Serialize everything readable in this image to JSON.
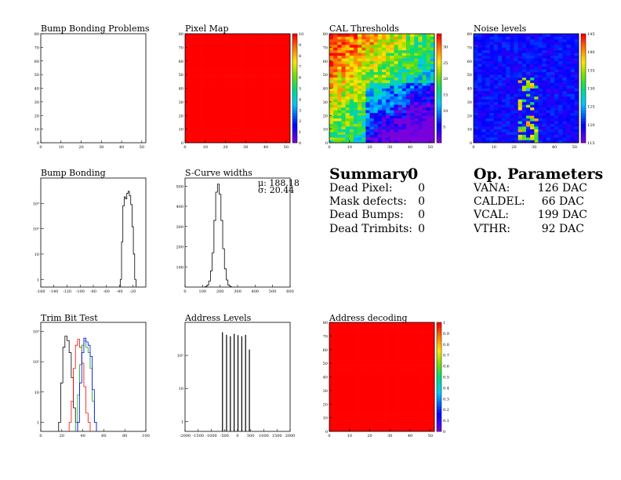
{
  "panels": {
    "bump_problems": {
      "title": "Bump Bonding Problems"
    },
    "pixel_map": {
      "title": "Pixel Map"
    },
    "cal_thresholds": {
      "title": "CAL Thresholds"
    },
    "noise_levels": {
      "title": "Noise levels"
    },
    "bump_bonding": {
      "title": "Bump Bonding"
    },
    "scurve": {
      "title": "S-Curve widths",
      "mu": "μ: 188.18",
      "sigma": "σ:  20.44"
    },
    "trim_bit": {
      "title": "Trim Bit Test"
    },
    "address_levels": {
      "title": "Address Levels"
    },
    "address_decoding": {
      "title": "Address decoding"
    }
  },
  "summary": {
    "heading": "Summary",
    "total": "0",
    "rows": [
      {
        "label": "Dead Pixel:",
        "value": "0"
      },
      {
        "label": "Mask defects:",
        "value": "0"
      },
      {
        "label": "Dead Bumps:",
        "value": "0"
      },
      {
        "label": "Dead Trimbits:",
        "value": "0"
      }
    ]
  },
  "op_parameters": {
    "heading": "Op. Parameters",
    "rows": [
      {
        "label": "VANA:",
        "value": "126 DAC"
      },
      {
        "label": "CALDEL:",
        "value": "66 DAC"
      },
      {
        "label": "VCAL:",
        "value": "199 DAC"
      },
      {
        "label": "VTHR:",
        "value": "92 DAC"
      }
    ]
  },
  "chart_data": [
    {
      "type": "heatmap",
      "id": "bump_problems",
      "title": "Bump Bonding Problems",
      "xlim": [
        0,
        52
      ],
      "ylim": [
        0,
        80
      ],
      "xticks": [
        "0",
        "10",
        "20",
        "30",
        "40",
        "50"
      ],
      "yticks": [
        "0",
        "10",
        "20",
        "30",
        "40",
        "50",
        "60",
        "70",
        "80"
      ],
      "values": "empty"
    },
    {
      "type": "heatmap",
      "id": "pixel_map",
      "title": "Pixel Map",
      "xlim": [
        0,
        52
      ],
      "ylim": [
        0,
        80
      ],
      "zlim": [
        0,
        10
      ],
      "xticks": [
        "0",
        "10",
        "20",
        "30",
        "40",
        "50"
      ],
      "yticks": [
        "0",
        "10",
        "20",
        "30",
        "40",
        "50",
        "60",
        "70",
        "80"
      ],
      "zticks": [
        "0",
        "1",
        "2",
        "3",
        "4",
        "5",
        "6",
        "7",
        "8",
        "9",
        "10"
      ],
      "uniform_value": 10
    },
    {
      "type": "heatmap",
      "id": "cal_thresholds",
      "title": "CAL Thresholds",
      "xlim": [
        0,
        52
      ],
      "ylim": [
        0,
        80
      ],
      "zlim": [
        0,
        34
      ],
      "xticks": [
        "0",
        "10",
        "20",
        "30",
        "40",
        "50"
      ],
      "yticks": [
        "0",
        "10",
        "20",
        "30",
        "40",
        "50",
        "60",
        "70",
        "80"
      ],
      "zticks": [
        "5",
        "10",
        "15",
        "20",
        "25",
        "30"
      ],
      "pattern": "high thresholds top-left (~28-34), low thresholds bottom-right (~3-8)"
    },
    {
      "type": "heatmap",
      "id": "noise_levels",
      "title": "Noise levels",
      "xlim": [
        0,
        52
      ],
      "ylim": [
        0,
        80
      ],
      "zlim": [
        115,
        145
      ],
      "xticks": [
        "0",
        "10",
        "20",
        "30",
        "40",
        "50"
      ],
      "yticks": [
        "0",
        "10",
        "20",
        "30",
        "40",
        "50",
        "60",
        "70",
        "80"
      ],
      "zticks": [
        "115",
        "120",
        "125",
        "130",
        "135",
        "140",
        "145"
      ],
      "pattern": "mostly ~118-122, elevated noise around columns 20-30 near bottom"
    },
    {
      "type": "line",
      "id": "bump_bonding",
      "title": "Bump Bonding",
      "log_y": true,
      "xlim": [
        -160,
        0
      ],
      "ylim": [
        0.5,
        10000
      ],
      "xticks": [
        "-160",
        "-140",
        "-120",
        "-100",
        "-80",
        "-60",
        "-40",
        "-20"
      ],
      "yticks": [
        "1",
        "10",
        "10²",
        "10³"
      ],
      "series": [
        {
          "x": [
            -38,
            -36,
            -34,
            -32,
            -30,
            -28,
            -26,
            -24,
            -22,
            -20,
            -18,
            -16
          ],
          "y": [
            1,
            30,
            800,
            1800,
            1500,
            2500,
            3000,
            2000,
            900,
            120,
            10,
            1
          ]
        }
      ]
    },
    {
      "type": "line",
      "id": "scurve",
      "title": "S-Curve widths",
      "xlim": [
        0,
        600
      ],
      "ylim": [
        0,
        540
      ],
      "xticks": [
        "0",
        "100",
        "200",
        "300",
        "400",
        "500",
        "600"
      ],
      "yticks": [
        "100",
        "200",
        "300",
        "400",
        "500"
      ],
      "series": [
        {
          "x": [
            120,
            130,
            140,
            150,
            160,
            170,
            180,
            190,
            200,
            210,
            220,
            230,
            240,
            250,
            260
          ],
          "y": [
            3,
            10,
            30,
            80,
            170,
            330,
            470,
            510,
            460,
            330,
            190,
            90,
            35,
            10,
            3
          ]
        }
      ]
    },
    {
      "type": "line",
      "id": "trim_bit",
      "title": "Trim Bit Test",
      "log_y": true,
      "xlim": [
        0,
        100
      ],
      "ylim": [
        0.5,
        2000
      ],
      "xticks": [
        "0",
        "20",
        "40",
        "60",
        "80",
        "100"
      ],
      "yticks": [
        "1",
        "10",
        "10²",
        "10³"
      ],
      "series": [
        {
          "color": "#000000",
          "x": [
            18,
            20,
            22,
            24,
            26,
            28,
            30,
            32,
            34
          ],
          "y": [
            1,
            20,
            300,
            700,
            500,
            200,
            30,
            3,
            1
          ]
        },
        {
          "color": "#ff0000",
          "x": [
            28,
            30,
            32,
            34,
            36,
            38,
            40,
            42,
            44,
            46
          ],
          "y": [
            1,
            5,
            60,
            350,
            550,
            300,
            90,
            15,
            2,
            1
          ]
        },
        {
          "color": "#00aa00",
          "x": [
            34,
            36,
            38,
            40,
            42,
            44,
            46,
            48,
            50,
            52
          ],
          "y": [
            1,
            8,
            80,
            350,
            500,
            300,
            200,
            60,
            5,
            1
          ]
        },
        {
          "color": "#0000ff",
          "x": [
            36,
            38,
            40,
            42,
            44,
            46,
            48,
            50,
            52
          ],
          "y": [
            1,
            20,
            200,
            600,
            450,
            350,
            150,
            12,
            1
          ]
        }
      ]
    },
    {
      "type": "bar",
      "id": "address_levels",
      "title": "Address Levels",
      "log_y": true,
      "xlim": [
        -2000,
        2000
      ],
      "ylim": [
        0.5,
        1000
      ],
      "xticks": [
        "-2000",
        "-1500",
        "-1000",
        "-500",
        "0",
        "500",
        "1000",
        "1500",
        "2000"
      ],
      "yticks": [
        "1",
        "10",
        "10²"
      ],
      "x": [
        -575,
        -420,
        -275,
        -130,
        15,
        160,
        305,
        450
      ],
      "y": [
        500,
        420,
        380,
        450,
        410,
        380,
        420,
        150
      ]
    },
    {
      "type": "heatmap",
      "id": "address_decoding",
      "title": "Address decoding",
      "xlim": [
        0,
        52
      ],
      "ylim": [
        0,
        80
      ],
      "zlim": [
        0,
        1
      ],
      "xticks": [
        "0",
        "10",
        "20",
        "30",
        "40",
        "50"
      ],
      "yticks": [
        "0",
        "10",
        "20",
        "30",
        "40",
        "50",
        "60",
        "70",
        "80"
      ],
      "zticks": [
        "0",
        "0.1",
        "0.2",
        "0.3",
        "0.4",
        "0.5",
        "0.6",
        "0.7",
        "0.8",
        "0.9",
        "1"
      ],
      "uniform_value": 1
    }
  ]
}
